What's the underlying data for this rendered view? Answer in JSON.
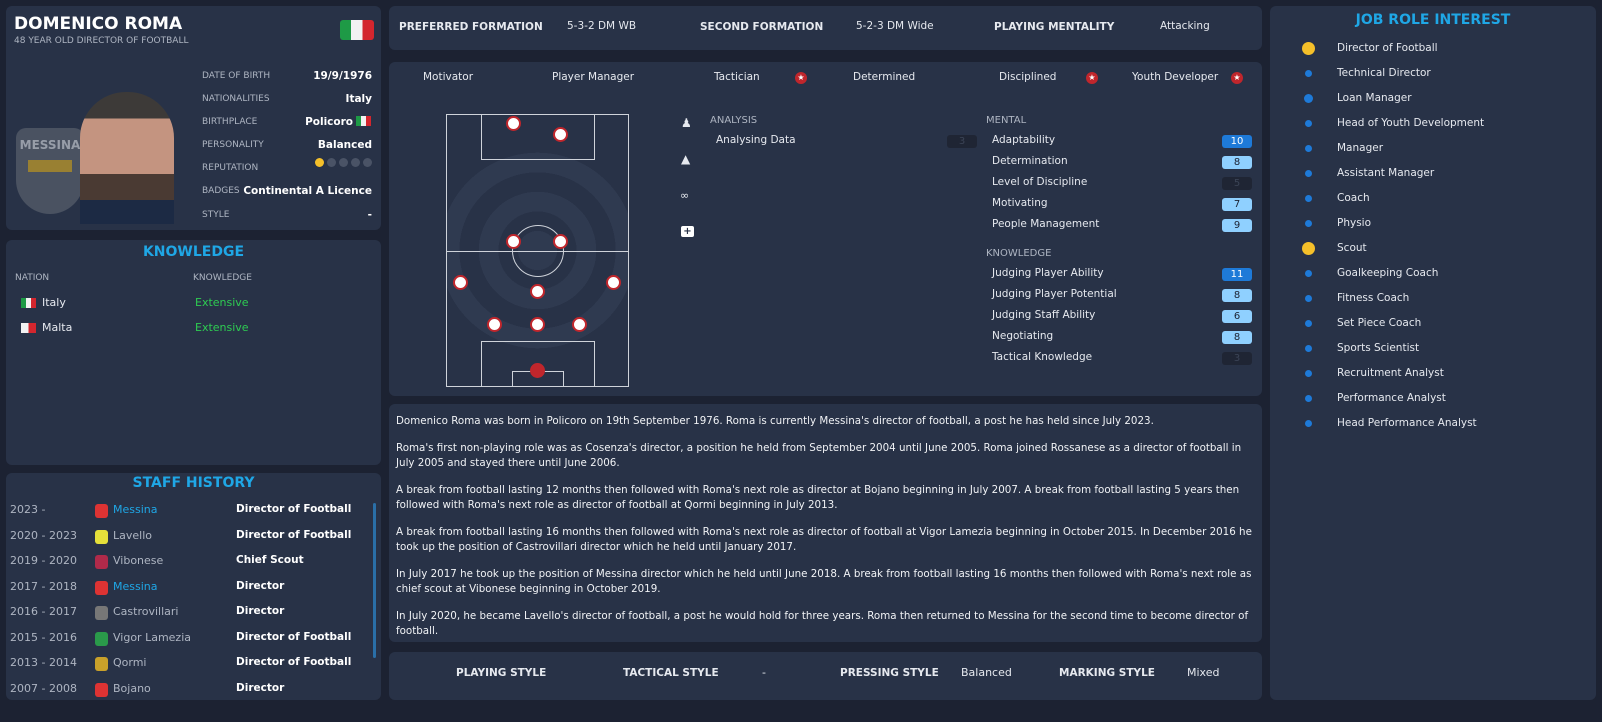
{
  "profile": {
    "name": "DOMENICO ROMA",
    "subtitle": "48 YEAR OLD DIRECTOR OF FOOTBALL",
    "club_crest_text": "MESSINA",
    "fields": [
      {
        "label": "DATE OF BIRTH",
        "value": "19/9/1976"
      },
      {
        "label": "NATIONALITIES",
        "value": "Italy"
      },
      {
        "label": "BIRTHPLACE",
        "value": "Policoro"
      },
      {
        "label": "PERSONALITY",
        "value": "Balanced"
      },
      {
        "label": "REPUTATION",
        "value": ""
      },
      {
        "label": "BADGES",
        "value": "Continental A Licence"
      },
      {
        "label": "STYLE",
        "value": "-"
      }
    ],
    "reputation_stars": 1,
    "reputation_max": 5
  },
  "knowledge": {
    "title": "KNOWLEDGE",
    "col_nation": "NATION",
    "col_knowledge": "KNOWLEDGE",
    "rows": [
      {
        "nation": "Italy",
        "level": "Extensive"
      },
      {
        "nation": "Malta",
        "level": "Extensive"
      }
    ]
  },
  "staff_history": {
    "title": "STAFF HISTORY",
    "rows": [
      {
        "years": "2023 -",
        "club": "Messina",
        "role": "Director of Football",
        "highlight": true,
        "color": "#d33"
      },
      {
        "years": "2020 - 2023",
        "club": "Lavello",
        "role": "Director of Football",
        "highlight": false,
        "color": "#e5e03a"
      },
      {
        "years": "2019 - 2020",
        "club": "Vibonese",
        "role": "Chief Scout",
        "highlight": false,
        "color": "#b02a4a"
      },
      {
        "years": "2017 - 2018",
        "club": "Messina",
        "role": "Director",
        "highlight": true,
        "color": "#d33"
      },
      {
        "years": "2016 - 2017",
        "club": "Castrovillari",
        "role": "Director",
        "highlight": false,
        "color": "#777"
      },
      {
        "years": "2015 - 2016",
        "club": "Vigor Lamezia",
        "role": "Director of Football",
        "highlight": false,
        "color": "#2a9a4a"
      },
      {
        "years": "2013 - 2014",
        "club": "Qormi",
        "role": "Director of Football",
        "highlight": false,
        "color": "#c9a12a"
      },
      {
        "years": "2007 - 2008",
        "club": "Bojano",
        "role": "Director",
        "highlight": false,
        "color": "#d33"
      }
    ]
  },
  "formation": {
    "preferred_label": "PREFERRED FORMATION",
    "preferred": "5-3-2 DM WB",
    "second_label": "SECOND FORMATION",
    "second": "5-2-3 DM Wide",
    "mentality_label": "PLAYING MENTALITY",
    "mentality": "Attacking"
  },
  "traits": [
    {
      "name": "Motivator",
      "star": false
    },
    {
      "name": "Player Manager",
      "star": false
    },
    {
      "name": "Tactician",
      "star": true
    },
    {
      "name": "Determined",
      "star": false
    },
    {
      "name": "Disciplined",
      "star": true
    },
    {
      "name": "Youth Developer",
      "star": true
    }
  ],
  "analysis": {
    "title": "ANALYSIS",
    "items": [
      {
        "name": "Analysing Data",
        "value": "3"
      }
    ]
  },
  "mental": {
    "title": "MENTAL",
    "items": [
      {
        "name": "Adaptability",
        "value": "10"
      },
      {
        "name": "Determination",
        "value": "8"
      },
      {
        "name": "Level of Discipline",
        "value": "5"
      },
      {
        "name": "Motivating",
        "value": "7"
      },
      {
        "name": "People Management",
        "value": "9"
      }
    ]
  },
  "knowledge_attrs": {
    "title": "KNOWLEDGE",
    "items": [
      {
        "name": "Judging Player Ability",
        "value": "11"
      },
      {
        "name": "Judging Player Potential",
        "value": "8"
      },
      {
        "name": "Judging Staff Ability",
        "value": "6"
      },
      {
        "name": "Negotiating",
        "value": "8"
      },
      {
        "name": "Tactical Knowledge",
        "value": "3"
      }
    ]
  },
  "bio": [
    "Domenico Roma was born in Policoro on 19th September 1976. Roma is currently Messina's director of football, a post he has held since July 2023.",
    "Roma's first non-playing role was as Cosenza's director, a position he held from September 2004 until June 2005. Roma joined Rossanese as a director of football in July 2005 and stayed there until June 2006.",
    "A break from football lasting 12 months then followed with Roma's next role as director at Bojano beginning in July 2007. A break from football lasting 5 years then followed with Roma's next role as director of football at Qormi beginning in July 2013.",
    "A break from football lasting 16 months then followed with Roma's next role as director of football at Vigor Lamezia beginning in October 2015. In December 2016 he took up the position of Castrovillari director which he held until January 2017.",
    "In July 2017 he took up the position of Messina director which he held until June 2018. A break from football lasting 16 months then followed with Roma's next role as chief scout at Vibonese beginning in October 2019.",
    "In July 2020, he became Lavello's director of football, a post he would hold for three years. Roma then returned to Messina for the second time to become director of football."
  ],
  "styles": {
    "playing_label": "PLAYING STYLE",
    "playing": "",
    "tactical_label": "TACTICAL STYLE",
    "tactical": "-",
    "pressing_label": "PRESSING STYLE",
    "pressing": "Balanced",
    "marking_label": "MARKING STYLE",
    "marking": "Mixed"
  },
  "job_roles": {
    "title": "JOB ROLE INTEREST",
    "items": [
      {
        "name": "Director of Football",
        "level": "high"
      },
      {
        "name": "Technical Director",
        "level": "low"
      },
      {
        "name": "Loan Manager",
        "level": "medium"
      },
      {
        "name": "Head of Youth Development",
        "level": "low"
      },
      {
        "name": "Manager",
        "level": "low"
      },
      {
        "name": "Assistant Manager",
        "level": "low"
      },
      {
        "name": "Coach",
        "level": "low"
      },
      {
        "name": "Physio",
        "level": "low"
      },
      {
        "name": "Scout",
        "level": "high"
      },
      {
        "name": "Goalkeeping Coach",
        "level": "low"
      },
      {
        "name": "Fitness Coach",
        "level": "low"
      },
      {
        "name": "Set Piece Coach",
        "level": "low"
      },
      {
        "name": "Sports Scientist",
        "level": "low"
      },
      {
        "name": "Recruitment Analyst",
        "level": "low"
      },
      {
        "name": "Performance Analyst",
        "level": "low"
      },
      {
        "name": "Head Performance Analyst",
        "level": "low"
      }
    ]
  },
  "colors": {
    "accent": "#1fa7e6",
    "star": "#c0262c",
    "good": "#2ecc52",
    "attr_high": "#1e7ad8",
    "attr_mid": "#8fd0ff",
    "attr_low": "#1f2534",
    "yellow": "#f5c02a"
  }
}
